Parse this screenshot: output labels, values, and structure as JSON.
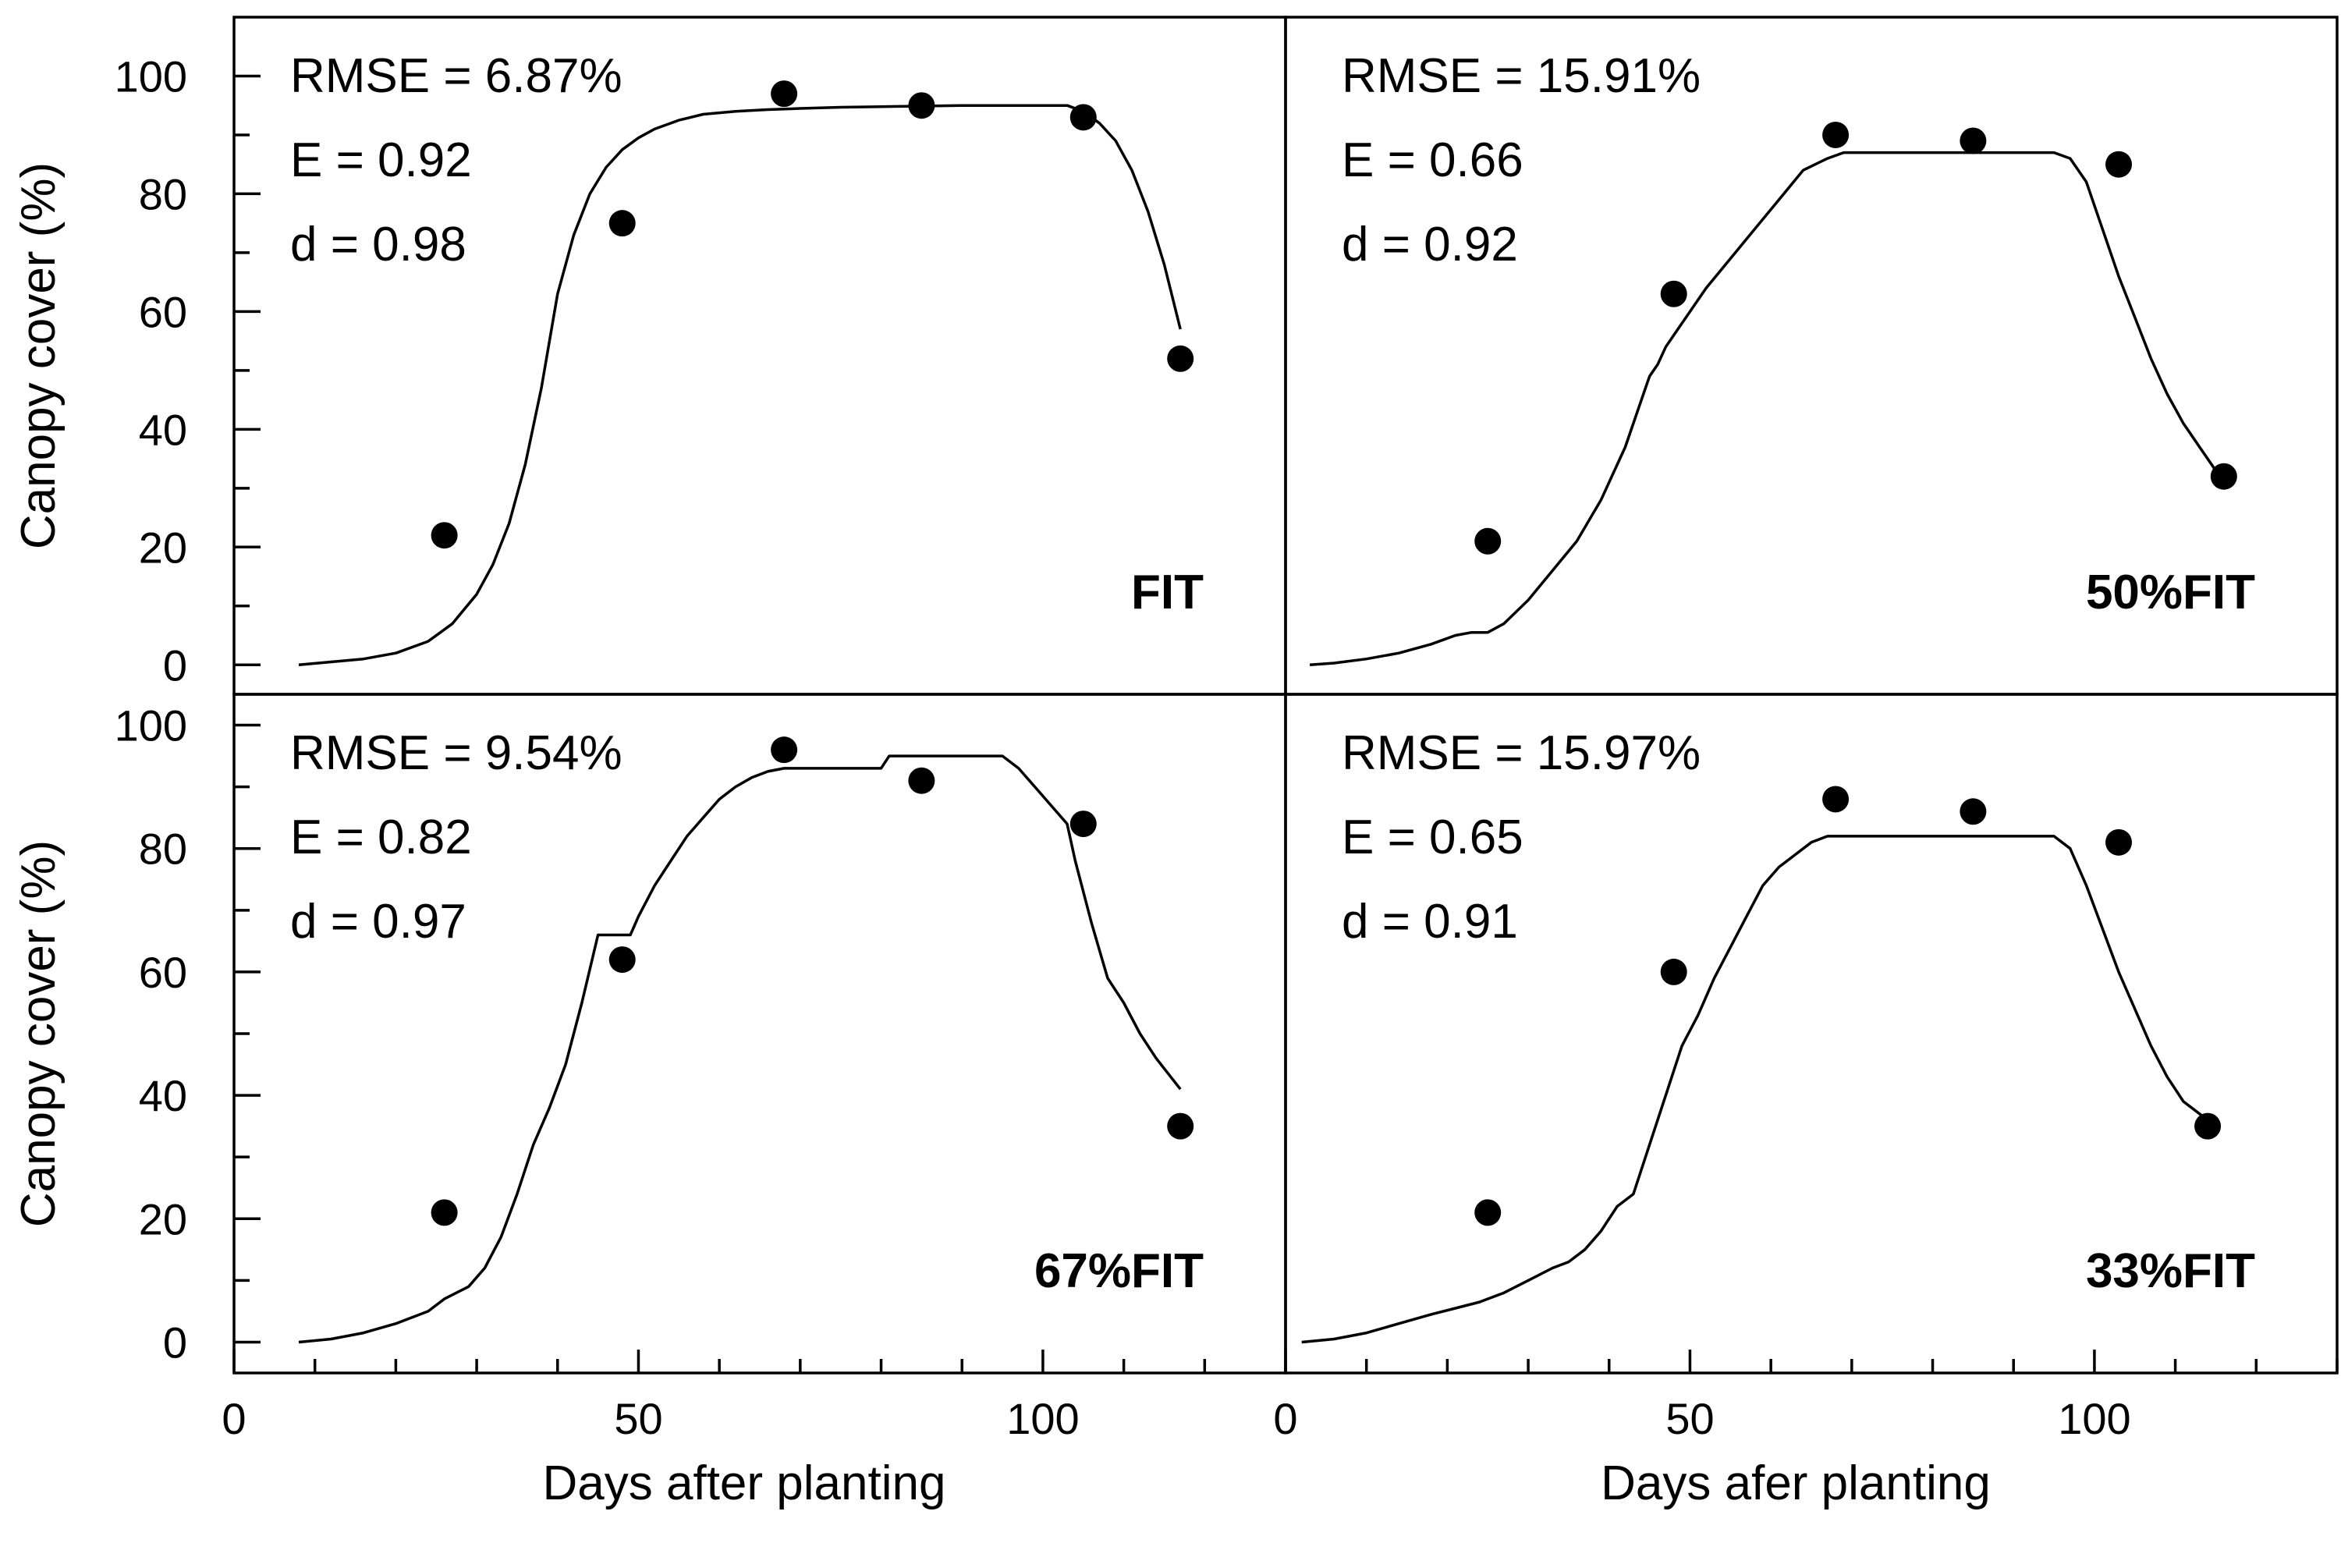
{
  "chart_data": [
    {
      "type": "line",
      "panel_label": "FIT",
      "stats": [
        "RMSE = 6.87%",
        "E = 0.92",
        "d = 0.98"
      ],
      "ylabel": "Canopy cover (%)",
      "xlabel": "",
      "xlim": [
        0,
        130
      ],
      "ylim": [
        -5,
        110
      ],
      "yticks": [
        0,
        20,
        40,
        60,
        80,
        100
      ],
      "xticks": [],
      "series": [
        {
          "role": "simulated",
          "x": [
            8,
            12,
            16,
            20,
            24,
            27,
            30,
            32,
            34,
            36,
            38,
            40,
            42,
            44,
            46,
            48,
            50,
            52,
            55,
            58,
            62,
            66,
            70,
            75,
            80,
            85,
            90,
            95,
            100,
            103,
            105,
            107,
            109,
            111,
            113,
            115,
            117
          ],
          "y": [
            0,
            0.5,
            1,
            2,
            4,
            7,
            12,
            17,
            24,
            34,
            47,
            63,
            73,
            80,
            84.5,
            87.5,
            89.5,
            91,
            92.5,
            93.5,
            94,
            94.3,
            94.5,
            94.7,
            94.8,
            94.9,
            95,
            95,
            95,
            95,
            94,
            92,
            89,
            84,
            77,
            68,
            57
          ]
        },
        {
          "role": "observed",
          "x": [
            26,
            48,
            68,
            85,
            105,
            117
          ],
          "y": [
            22,
            75,
            97,
            95,
            93,
            52
          ]
        }
      ]
    },
    {
      "type": "line",
      "panel_label": "50%FIT",
      "stats": [
        "RMSE = 15.91%",
        "E = 0.66",
        "d = 0.92"
      ],
      "ylabel": "",
      "xlabel": "",
      "xlim": [
        0,
        130
      ],
      "ylim": [
        -5,
        110
      ],
      "yticks": [],
      "xticks": [],
      "series": [
        {
          "role": "simulated",
          "x": [
            3,
            6,
            10,
            14,
            18,
            21,
            23,
            25,
            27,
            30,
            33,
            36,
            39,
            42,
            44,
            45,
            46,
            47,
            48,
            50,
            52,
            55,
            58,
            61,
            64,
            67,
            69,
            72,
            76,
            80,
            85,
            90,
            95,
            97,
            99,
            101,
            103,
            105,
            107,
            109,
            111,
            113,
            115,
            117
          ],
          "y": [
            0,
            0.3,
            1,
            2,
            3.5,
            5,
            5.5,
            5.5,
            7,
            11,
            16,
            21,
            28,
            37,
            45,
            49,
            51,
            54,
            56,
            60,
            64,
            69,
            74,
            79,
            84,
            86,
            87,
            87,
            87,
            87,
            87,
            87,
            87,
            86,
            82,
            74,
            66,
            59,
            52,
            46,
            41,
            37,
            33,
            31
          ]
        },
        {
          "role": "observed",
          "x": [
            25,
            48,
            68,
            85,
            103,
            116
          ],
          "y": [
            21,
            63,
            90,
            89,
            85,
            32
          ]
        }
      ]
    },
    {
      "type": "line",
      "panel_label": "67%FIT",
      "stats": [
        "RMSE = 9.54%",
        "E = 0.82",
        "d = 0.97"
      ],
      "ylabel": "Canopy cover (%)",
      "xlabel": "Days after planting",
      "xlim": [
        0,
        130
      ],
      "ylim": [
        -5,
        105
      ],
      "yticks": [
        0,
        20,
        40,
        60,
        80,
        100
      ],
      "xticks": [
        0,
        50,
        100
      ],
      "series": [
        {
          "role": "simulated",
          "x": [
            8,
            12,
            16,
            20,
            24,
            26,
            29,
            31,
            33,
            35,
            37,
            39,
            41,
            43,
            45,
            47,
            48,
            49,
            50,
            52,
            54,
            56,
            58,
            60,
            62,
            64,
            66,
            68,
            70,
            72,
            75,
            78,
            80,
            81,
            83,
            86,
            90,
            95,
            97,
            99,
            101,
            103,
            104,
            106,
            108,
            110,
            112,
            114,
            117
          ],
          "y": [
            0,
            0.5,
            1.5,
            3,
            5,
            7,
            9,
            12,
            17,
            24,
            32,
            38,
            45,
            55,
            66,
            66,
            66,
            66,
            69,
            74,
            78,
            82,
            85,
            88,
            90,
            91.5,
            92.5,
            93,
            93,
            93,
            93,
            93,
            93,
            95,
            95,
            95,
            95,
            95,
            93,
            90,
            87,
            84,
            78,
            68,
            59,
            55,
            50,
            46,
            41
          ]
        },
        {
          "role": "observed",
          "x": [
            26,
            48,
            68,
            85,
            105,
            117
          ],
          "y": [
            21,
            62,
            96,
            91,
            84,
            35
          ]
        }
      ]
    },
    {
      "type": "line",
      "panel_label": "33%FIT",
      "stats": [
        "RMSE = 15.97%",
        "E = 0.65",
        "d = 0.91"
      ],
      "ylabel": "",
      "xlabel": "Days afer planting",
      "xlim": [
        0,
        130
      ],
      "ylim": [
        -5,
        105
      ],
      "yticks": [],
      "xticks": [
        0,
        50,
        100
      ],
      "series": [
        {
          "role": "simulated",
          "x": [
            2,
            6,
            10,
            14,
            18,
            21,
            24,
            27,
            30,
            33,
            35,
            37,
            39,
            41,
            43,
            45,
            47,
            49,
            51,
            53,
            55,
            57,
            59,
            61,
            63,
            65,
            67,
            70,
            75,
            80,
            85,
            90,
            95,
            97,
            99,
            101,
            103,
            105,
            107,
            109,
            111,
            113,
            115
          ],
          "y": [
            0,
            0.5,
            1.5,
            3,
            4.5,
            5.5,
            6.5,
            8,
            10,
            12,
            13,
            15,
            18,
            22,
            24,
            32,
            40,
            48,
            53,
            59,
            64,
            69,
            74,
            77,
            79,
            81,
            82,
            82,
            82,
            82,
            82,
            82,
            82,
            80,
            74,
            67,
            60,
            54,
            48,
            43,
            39,
            37,
            35
          ]
        },
        {
          "role": "observed",
          "x": [
            25,
            48,
            68,
            85,
            103,
            114
          ],
          "y": [
            21,
            60,
            88,
            86,
            81,
            35
          ]
        }
      ]
    }
  ]
}
